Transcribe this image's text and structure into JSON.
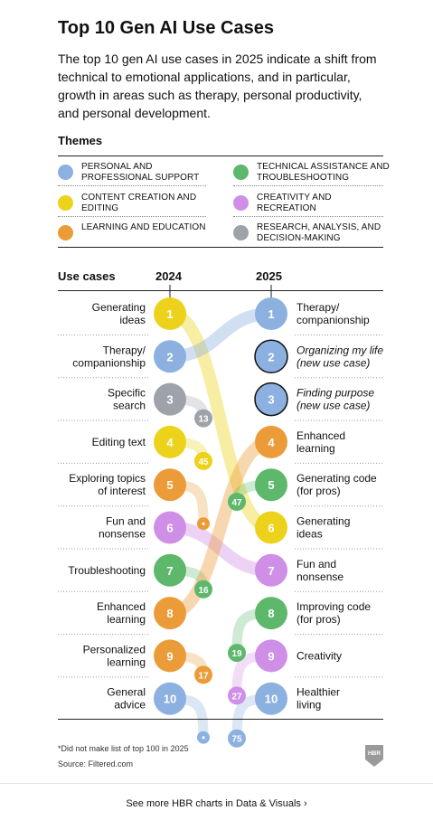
{
  "header": {
    "title": "Top 10 Gen AI Use Cases",
    "subtitle": "The top 10 gen AI use cases in 2025 indicate a shift from technical to emotional applications, and in particular, growth in areas such as therapy, personal productivity, and personal development."
  },
  "themes": {
    "heading": "Themes",
    "items": [
      {
        "key": "personal",
        "label": "Personal and professional support",
        "color": "#8cb0df"
      },
      {
        "key": "technical",
        "label": "Technical assistance and troubleshooting",
        "color": "#5db86c"
      },
      {
        "key": "content",
        "label": "Content creation and editing",
        "color": "#ecd21a"
      },
      {
        "key": "creativity",
        "label": "Creativity and recreation",
        "color": "#cf8fe6"
      },
      {
        "key": "learning",
        "label": "Learning and education",
        "color": "#eb9c38"
      },
      {
        "key": "research",
        "label": "Research, analysis, and decision-making",
        "color": "#9ea3aa"
      }
    ]
  },
  "chart_data": {
    "type": "slope",
    "column_headers": {
      "label": "Use cases",
      "left": "2024",
      "right": "2025"
    },
    "ranks_2024": [
      {
        "rank": "1",
        "label": "Generating ideas",
        "theme": "content",
        "rank_2025": "6"
      },
      {
        "rank": "2",
        "label": "Therapy/ companionship",
        "theme": "personal",
        "rank_2025": "1"
      },
      {
        "rank": "3",
        "label": "Specific search",
        "theme": "research",
        "rank_2025": "13"
      },
      {
        "rank": "4",
        "label": "Editing text",
        "theme": "content",
        "rank_2025": "45"
      },
      {
        "rank": "5",
        "label": "Exploring topics of interest",
        "theme": "learning",
        "rank_2025": "•"
      },
      {
        "rank": "6",
        "label": "Fun and nonsense",
        "theme": "creativity",
        "rank_2025": "7"
      },
      {
        "rank": "7",
        "label": "Troubleshooting",
        "theme": "technical",
        "rank_2025": "16"
      },
      {
        "rank": "8",
        "label": "Enhanced learning",
        "theme": "learning",
        "rank_2025": "4"
      },
      {
        "rank": "9",
        "label": "Personalized learning",
        "theme": "learning",
        "rank_2025": "17"
      },
      {
        "rank": "10",
        "label": "General advice",
        "theme": "personal",
        "rank_2025": "•"
      }
    ],
    "ranks_2025": [
      {
        "rank": "1",
        "label": "Therapy/ companionship",
        "theme": "personal",
        "rank_2024": "2",
        "new": false
      },
      {
        "rank": "2",
        "label": "Organizing my life (new use case)",
        "theme": "personal",
        "rank_2024": "",
        "new": true
      },
      {
        "rank": "3",
        "label": "Finding purpose (new use case)",
        "theme": "personal",
        "rank_2024": "",
        "new": true
      },
      {
        "rank": "4",
        "label": "Enhanced learning",
        "theme": "learning",
        "rank_2024": "8",
        "new": false
      },
      {
        "rank": "5",
        "label": "Generating code (for pros)",
        "theme": "technical",
        "rank_2024": "47",
        "new": false
      },
      {
        "rank": "6",
        "label": "Generating ideas",
        "theme": "content",
        "rank_2024": "1",
        "new": false
      },
      {
        "rank": "7",
        "label": "Fun and nonsense",
        "theme": "creativity",
        "rank_2024": "6",
        "new": false
      },
      {
        "rank": "8",
        "label": "Improving code (for pros)",
        "theme": "technical",
        "rank_2024": "19",
        "new": false
      },
      {
        "rank": "9",
        "label": "Creativity",
        "theme": "creativity",
        "rank_2024": "27",
        "new": false
      },
      {
        "rank": "10",
        "label": "Healthier living",
        "theme": "personal",
        "rank_2024": "75",
        "new": false
      }
    ]
  },
  "footer": {
    "note": "*Did not make list of top 100 in 2025",
    "source": "Source: Filtered.com",
    "logo_text": "HBR",
    "more_link": "See more HBR charts in Data & Visuals ›"
  }
}
